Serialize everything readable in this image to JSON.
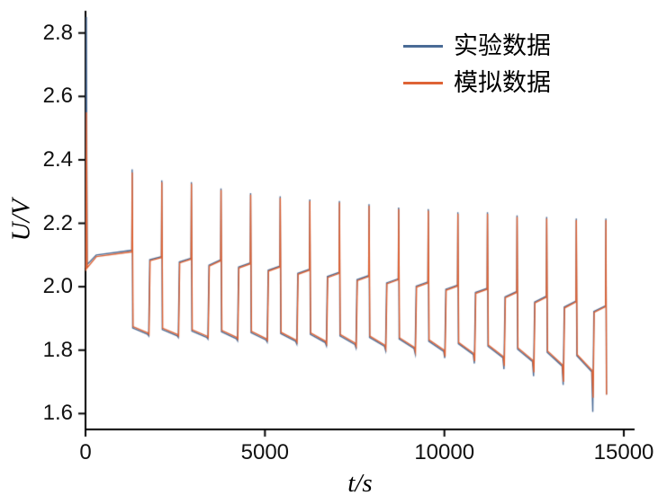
{
  "chart_data": {
    "type": "line",
    "title": "",
    "xlabel": "t/s",
    "ylabel": "U/V",
    "xlim": [
      0,
      15300
    ],
    "ylim": [
      1.55,
      2.87
    ],
    "x_ticks": [
      "0",
      "5000",
      "10000",
      "15000"
    ],
    "y_ticks": [
      "1.6",
      "1.8",
      "2.0",
      "2.2",
      "2.4",
      "2.6",
      "2.8"
    ],
    "grid": false,
    "legend_position": "top-right",
    "axis_color": "#000000",
    "series": [
      {
        "name": "实验数据",
        "color": "#4a6b96",
        "points": [
          [
            10,
            2.06
          ],
          [
            25,
            2.85
          ],
          [
            45,
            2.07
          ],
          [
            300,
            2.1
          ],
          [
            1290,
            2.115
          ],
          [
            1300,
            2.37
          ],
          [
            1315,
            1.87
          ],
          [
            1730,
            1.85
          ],
          [
            1760,
            1.845
          ],
          [
            1790,
            2.085
          ],
          [
            2115,
            2.095
          ],
          [
            2125,
            2.335
          ],
          [
            2140,
            1.865
          ],
          [
            2555,
            1.845
          ],
          [
            2585,
            1.84
          ],
          [
            2615,
            2.078
          ],
          [
            2940,
            2.09
          ],
          [
            2950,
            2.33
          ],
          [
            2965,
            1.86
          ],
          [
            3380,
            1.84
          ],
          [
            3410,
            1.835
          ],
          [
            3440,
            2.068
          ],
          [
            3765,
            2.085
          ],
          [
            3775,
            2.31
          ],
          [
            3790,
            1.858
          ],
          [
            4205,
            1.836
          ],
          [
            4235,
            1.83
          ],
          [
            4265,
            2.062
          ],
          [
            4590,
            2.075
          ],
          [
            4600,
            2.295
          ],
          [
            4615,
            1.855
          ],
          [
            5030,
            1.832
          ],
          [
            5060,
            1.826
          ],
          [
            5090,
            2.052
          ],
          [
            5415,
            2.065
          ],
          [
            5425,
            2.285
          ],
          [
            5440,
            1.852
          ],
          [
            5855,
            1.828
          ],
          [
            5885,
            1.82
          ],
          [
            5915,
            2.042
          ],
          [
            6240,
            2.055
          ],
          [
            6250,
            2.275
          ],
          [
            6265,
            1.85
          ],
          [
            6680,
            1.824
          ],
          [
            6710,
            1.815
          ],
          [
            6740,
            2.032
          ],
          [
            7065,
            2.045
          ],
          [
            7075,
            2.27
          ],
          [
            7090,
            1.845
          ],
          [
            7505,
            1.818
          ],
          [
            7535,
            1.808
          ],
          [
            7565,
            2.022
          ],
          [
            7890,
            2.035
          ],
          [
            7900,
            2.26
          ],
          [
            7915,
            1.84
          ],
          [
            8330,
            1.812
          ],
          [
            8360,
            1.8
          ],
          [
            8390,
            2.012
          ],
          [
            8715,
            2.025
          ],
          [
            8725,
            2.25
          ],
          [
            8740,
            1.835
          ],
          [
            9155,
            1.805
          ],
          [
            9185,
            1.79
          ],
          [
            9215,
            2.002
          ],
          [
            9540,
            2.015
          ],
          [
            9550,
            2.245
          ],
          [
            9565,
            1.828
          ],
          [
            9980,
            1.796
          ],
          [
            10010,
            1.775
          ],
          [
            10040,
            1.992
          ],
          [
            10365,
            2.005
          ],
          [
            10375,
            2.235
          ],
          [
            10390,
            1.82
          ],
          [
            10805,
            1.786
          ],
          [
            10835,
            1.758
          ],
          [
            10865,
            1.982
          ],
          [
            11190,
            1.995
          ],
          [
            11200,
            2.235
          ],
          [
            11215,
            1.812
          ],
          [
            11630,
            1.776
          ],
          [
            11660,
            1.74
          ],
          [
            11690,
            1.968
          ],
          [
            12015,
            1.985
          ],
          [
            12025,
            2.225
          ],
          [
            12040,
            1.803
          ],
          [
            12455,
            1.764
          ],
          [
            12485,
            1.718
          ],
          [
            12515,
            1.952
          ],
          [
            12840,
            1.97
          ],
          [
            12850,
            2.22
          ],
          [
            12865,
            1.793
          ],
          [
            13280,
            1.75
          ],
          [
            13310,
            1.69
          ],
          [
            13340,
            1.936
          ],
          [
            13665,
            1.955
          ],
          [
            13675,
            2.215
          ],
          [
            13690,
            1.782
          ],
          [
            14105,
            1.732
          ],
          [
            14135,
            1.605
          ],
          [
            14165,
            1.922
          ],
          [
            14490,
            1.94
          ],
          [
            14500,
            2.215
          ],
          [
            14515,
            1.66
          ]
        ]
      },
      {
        "name": "模拟数据",
        "color": "#de6335",
        "points": [
          [
            12,
            2.05
          ],
          [
            27,
            2.55
          ],
          [
            47,
            2.06
          ],
          [
            305,
            2.095
          ],
          [
            1292,
            2.11
          ],
          [
            1302,
            2.36
          ],
          [
            1325,
            1.874
          ],
          [
            1740,
            1.854
          ],
          [
            1770,
            1.85
          ],
          [
            1800,
            2.082
          ],
          [
            2117,
            2.092
          ],
          [
            2127,
            2.33
          ],
          [
            2150,
            1.869
          ],
          [
            2565,
            1.849
          ],
          [
            2595,
            1.845
          ],
          [
            2625,
            2.075
          ],
          [
            2942,
            2.087
          ],
          [
            2952,
            2.325
          ],
          [
            2975,
            1.864
          ],
          [
            3390,
            1.844
          ],
          [
            3420,
            1.84
          ],
          [
            3450,
            2.065
          ],
          [
            3767,
            2.082
          ],
          [
            3777,
            2.305
          ],
          [
            3800,
            1.862
          ],
          [
            4215,
            1.84
          ],
          [
            4245,
            1.835
          ],
          [
            4275,
            2.059
          ],
          [
            4592,
            2.072
          ],
          [
            4602,
            2.29
          ],
          [
            4625,
            1.859
          ],
          [
            5040,
            1.836
          ],
          [
            5070,
            1.831
          ],
          [
            5100,
            2.049
          ],
          [
            5417,
            2.062
          ],
          [
            5427,
            2.28
          ],
          [
            5450,
            1.856
          ],
          [
            5865,
            1.832
          ],
          [
            5895,
            1.825
          ],
          [
            5925,
            2.039
          ],
          [
            6242,
            2.052
          ],
          [
            6252,
            2.27
          ],
          [
            6275,
            1.854
          ],
          [
            6690,
            1.828
          ],
          [
            6720,
            1.82
          ],
          [
            6750,
            2.029
          ],
          [
            7067,
            2.042
          ],
          [
            7077,
            2.265
          ],
          [
            7100,
            1.849
          ],
          [
            7515,
            1.822
          ],
          [
            7545,
            1.813
          ],
          [
            7575,
            2.019
          ],
          [
            7892,
            2.032
          ],
          [
            7902,
            2.255
          ],
          [
            7925,
            1.844
          ],
          [
            8340,
            1.816
          ],
          [
            8370,
            1.805
          ],
          [
            8400,
            2.009
          ],
          [
            8717,
            2.022
          ],
          [
            8727,
            2.245
          ],
          [
            8750,
            1.839
          ],
          [
            9165,
            1.809
          ],
          [
            9195,
            1.795
          ],
          [
            9225,
            1.999
          ],
          [
            9542,
            2.012
          ],
          [
            9552,
            2.24
          ],
          [
            9575,
            1.832
          ],
          [
            9990,
            1.8
          ],
          [
            10020,
            1.78
          ],
          [
            10050,
            1.989
          ],
          [
            10367,
            2.002
          ],
          [
            10377,
            2.23
          ],
          [
            10400,
            1.824
          ],
          [
            10815,
            1.79
          ],
          [
            10845,
            1.765
          ],
          [
            10875,
            1.979
          ],
          [
            11192,
            1.992
          ],
          [
            11202,
            2.23
          ],
          [
            11225,
            1.816
          ],
          [
            11640,
            1.78
          ],
          [
            11670,
            1.75
          ],
          [
            11700,
            1.965
          ],
          [
            12017,
            1.982
          ],
          [
            12027,
            2.22
          ],
          [
            12050,
            1.807
          ],
          [
            12465,
            1.768
          ],
          [
            12495,
            1.73
          ],
          [
            12525,
            1.949
          ],
          [
            12842,
            1.967
          ],
          [
            12852,
            2.215
          ],
          [
            12875,
            1.797
          ],
          [
            13290,
            1.754
          ],
          [
            13320,
            1.7
          ],
          [
            13350,
            1.933
          ],
          [
            13667,
            1.952
          ],
          [
            13677,
            2.21
          ],
          [
            13700,
            1.786
          ],
          [
            14115,
            1.736
          ],
          [
            14145,
            1.65
          ],
          [
            14175,
            1.919
          ],
          [
            14492,
            1.937
          ],
          [
            14502,
            2.21
          ],
          [
            14517,
            1.66
          ]
        ]
      }
    ]
  }
}
